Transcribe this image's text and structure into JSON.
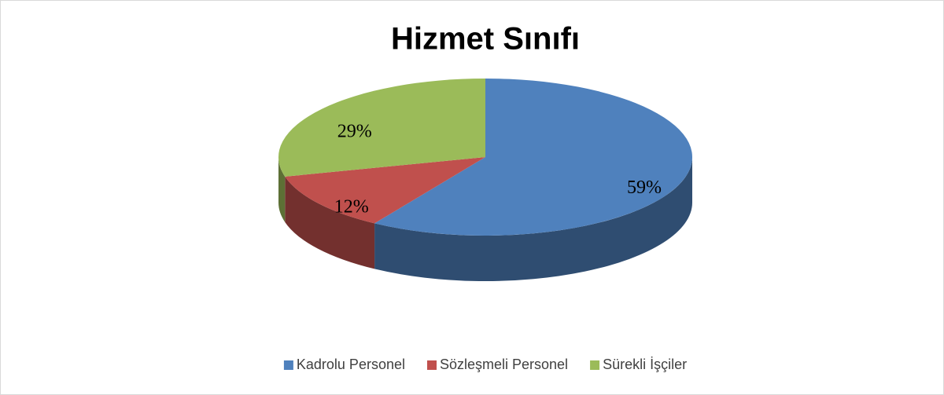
{
  "chart_data": {
    "type": "pie",
    "title": "Hizmet Sınıfı",
    "categories": [
      "Kadrolu Personel",
      "Sözleşmeli Personel",
      "Sürekli İşçiler"
    ],
    "values": [
      59,
      12,
      29
    ],
    "value_labels": [
      "59%",
      "12%",
      "29%"
    ],
    "colors": [
      "#4f81bd",
      "#c0504d",
      "#9bbb59"
    ],
    "legend": "bottom"
  }
}
